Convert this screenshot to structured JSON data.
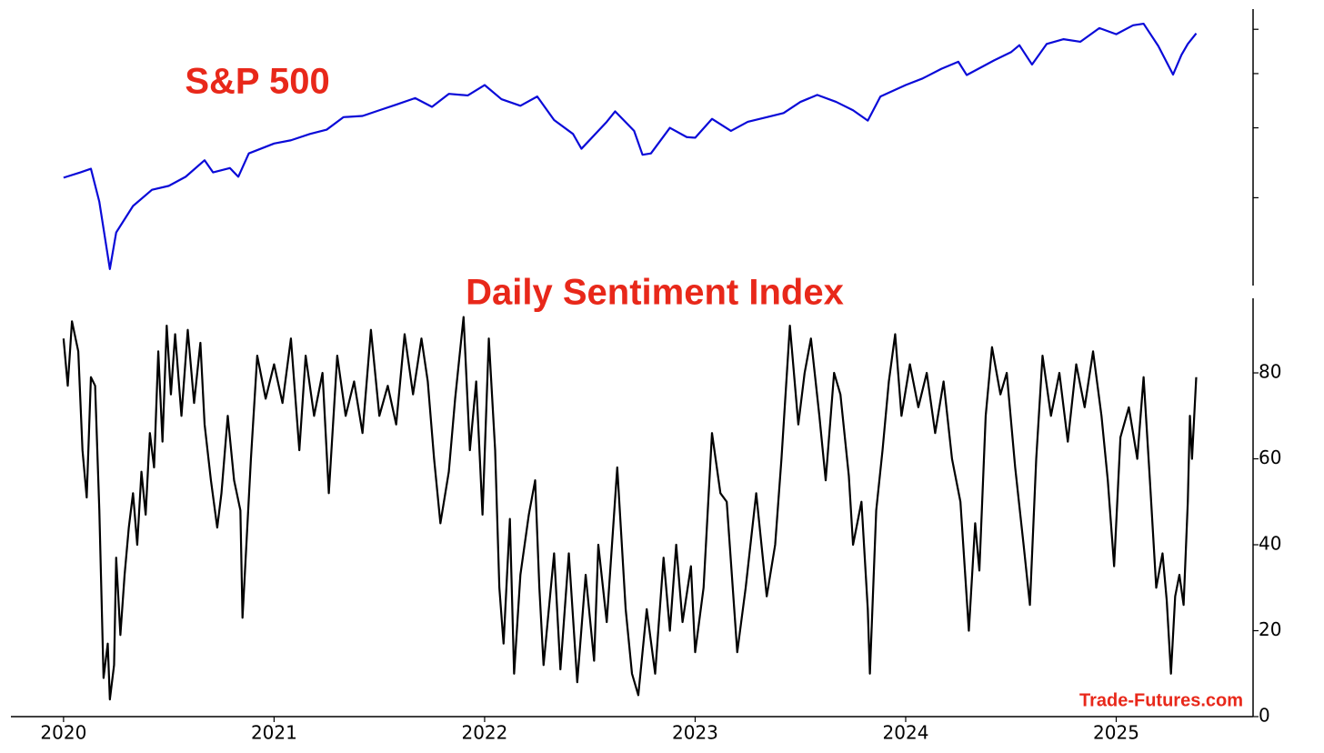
{
  "chart_data": [
    {
      "type": "line",
      "title": "S&P 500",
      "color": "#0a0ad8",
      "log_scale": true,
      "tick_labels": false,
      "xlim": [
        2019.75,
        2025.65
      ],
      "ylim": [
        2090,
        6520
      ],
      "yticks": [
        3000,
        4000,
        5000,
        6000
      ],
      "x": [
        2020.0,
        2020.08,
        2020.13,
        2020.17,
        2020.22,
        2020.25,
        2020.33,
        2020.42,
        2020.5,
        2020.58,
        2020.67,
        2020.71,
        2020.79,
        2020.83,
        2020.88,
        2021.0,
        2021.08,
        2021.17,
        2021.25,
        2021.33,
        2021.42,
        2021.5,
        2021.58,
        2021.67,
        2021.75,
        2021.83,
        2021.92,
        2022.0,
        2022.08,
        2022.17,
        2022.25,
        2022.33,
        2022.42,
        2022.46,
        2022.58,
        2022.62,
        2022.71,
        2022.75,
        2022.79,
        2022.88,
        2022.96,
        2023.0,
        2023.08,
        2023.17,
        2023.25,
        2023.33,
        2023.42,
        2023.5,
        2023.58,
        2023.67,
        2023.75,
        2023.82,
        2023.88,
        2024.0,
        2024.08,
        2024.17,
        2024.25,
        2024.29,
        2024.42,
        2024.5,
        2024.54,
        2024.6,
        2024.67,
        2024.75,
        2024.83,
        2024.92,
        2025.0,
        2025.08,
        2025.13,
        2025.2,
        2025.27,
        2025.31,
        2025.34,
        2025.38
      ],
      "values": [
        3258,
        3330,
        3380,
        2950,
        2237,
        2600,
        2900,
        3100,
        3150,
        3270,
        3500,
        3330,
        3390,
        3270,
        3600,
        3750,
        3800,
        3900,
        3970,
        4180,
        4200,
        4300,
        4400,
        4520,
        4360,
        4600,
        4570,
        4770,
        4500,
        4380,
        4550,
        4130,
        3900,
        3670,
        4100,
        4280,
        3950,
        3580,
        3600,
        4000,
        3850,
        3840,
        4150,
        3950,
        4100,
        4170,
        4250,
        4450,
        4580,
        4450,
        4300,
        4120,
        4550,
        4770,
        4900,
        5100,
        5250,
        4970,
        5280,
        5460,
        5620,
        5190,
        5650,
        5760,
        5700,
        6030,
        5880,
        6100,
        6140,
        5600,
        4980,
        5400,
        5650,
        5900
      ]
    },
    {
      "type": "line",
      "title": "Daily Sentiment Index",
      "color": "#000000",
      "annotation": "Trade-Futures.com",
      "xlim": [
        2019.75,
        2025.65
      ],
      "xticks": [
        2020,
        2021,
        2022,
        2023,
        2024,
        2025
      ],
      "ylim": [
        0,
        97
      ],
      "yticks": [
        0,
        20,
        40,
        60,
        80
      ],
      "x": [
        2020.0,
        2020.02,
        2020.04,
        2020.07,
        2020.09,
        2020.11,
        2020.13,
        2020.15,
        2020.17,
        2020.19,
        2020.21,
        2020.22,
        2020.24,
        2020.25,
        2020.27,
        2020.29,
        2020.31,
        2020.33,
        2020.35,
        2020.37,
        2020.39,
        2020.41,
        2020.43,
        2020.45,
        2020.47,
        2020.49,
        2020.51,
        2020.53,
        2020.56,
        2020.59,
        2020.62,
        2020.65,
        2020.67,
        2020.7,
        2020.73,
        2020.75,
        2020.78,
        2020.81,
        2020.84,
        2020.85,
        2020.89,
        2020.92,
        2020.96,
        2021.0,
        2021.04,
        2021.08,
        2021.12,
        2021.15,
        2021.19,
        2021.23,
        2021.26,
        2021.3,
        2021.34,
        2021.38,
        2021.42,
        2021.46,
        2021.5,
        2021.54,
        2021.58,
        2021.62,
        2021.66,
        2021.7,
        2021.73,
        2021.76,
        2021.79,
        2021.83,
        2021.86,
        2021.9,
        2021.93,
        2021.96,
        2021.99,
        2022.02,
        2022.05,
        2022.07,
        2022.09,
        2022.12,
        2022.14,
        2022.17,
        2022.21,
        2022.24,
        2022.26,
        2022.28,
        2022.33,
        2022.36,
        2022.4,
        2022.44,
        2022.48,
        2022.52,
        2022.54,
        2022.58,
        2022.63,
        2022.67,
        2022.7,
        2022.73,
        2022.77,
        2022.81,
        2022.85,
        2022.88,
        2022.91,
        2022.94,
        2022.98,
        2023.0,
        2023.04,
        2023.08,
        2023.12,
        2023.15,
        2023.2,
        2023.24,
        2023.29,
        2023.34,
        2023.38,
        2023.41,
        2023.45,
        2023.49,
        2023.52,
        2023.55,
        2023.59,
        2023.62,
        2023.66,
        2023.69,
        2023.73,
        2023.75,
        2023.79,
        2023.82,
        2023.83,
        2023.86,
        2023.89,
        2023.92,
        2023.95,
        2023.98,
        2024.02,
        2024.06,
        2024.1,
        2024.14,
        2024.18,
        2024.22,
        2024.26,
        2024.3,
        2024.33,
        2024.35,
        2024.38,
        2024.41,
        2024.45,
        2024.48,
        2024.52,
        2024.56,
        2024.59,
        2024.62,
        2024.65,
        2024.69,
        2024.73,
        2024.77,
        2024.81,
        2024.85,
        2024.89,
        2024.93,
        2024.96,
        2024.99,
        2025.02,
        2025.06,
        2025.1,
        2025.13,
        2025.16,
        2025.19,
        2025.22,
        2025.24,
        2025.26,
        2025.28,
        2025.3,
        2025.32,
        2025.34,
        2025.35,
        2025.36,
        2025.38
      ],
      "values": [
        88,
        77,
        92,
        85,
        62,
        51,
        79,
        77,
        48,
        9,
        17,
        4,
        12,
        37,
        19,
        33,
        44,
        52,
        40,
        57,
        47,
        66,
        58,
        85,
        64,
        91,
        75,
        89,
        70,
        90,
        73,
        87,
        68,
        55,
        44,
        52,
        70,
        55,
        48,
        23,
        60,
        84,
        74,
        82,
        73,
        88,
        62,
        84,
        70,
        80,
        52,
        84,
        70,
        78,
        66,
        90,
        70,
        77,
        68,
        89,
        75,
        88,
        78,
        60,
        45,
        57,
        74,
        93,
        62,
        78,
        47,
        88,
        62,
        30,
        17,
        46,
        10,
        33,
        47,
        55,
        30,
        12,
        38,
        11,
        38,
        8,
        33,
        13,
        40,
        22,
        58,
        25,
        10,
        5,
        25,
        10,
        37,
        20,
        40,
        22,
        35,
        15,
        30,
        66,
        52,
        50,
        15,
        30,
        52,
        28,
        40,
        60,
        91,
        68,
        80,
        88,
        70,
        55,
        80,
        75,
        56,
        40,
        50,
        25,
        10,
        48,
        62,
        78,
        89,
        70,
        82,
        72,
        80,
        66,
        78,
        60,
        50,
        20,
        45,
        34,
        70,
        86,
        75,
        80,
        58,
        40,
        26,
        60,
        84,
        70,
        80,
        64,
        82,
        72,
        85,
        70,
        55,
        35,
        65,
        72,
        60,
        79,
        55,
        30,
        38,
        27,
        10,
        28,
        33,
        26,
        50,
        70,
        60,
        79
      ]
    }
  ]
}
